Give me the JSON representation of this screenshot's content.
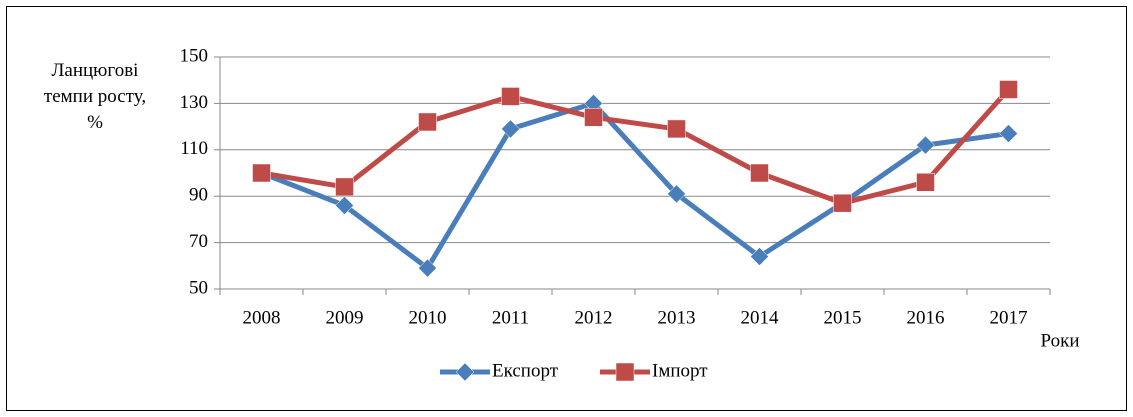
{
  "chart_data": {
    "type": "line",
    "y_label": "Ланцюгові темпи росту, %",
    "x_label": "Роки",
    "categories": [
      "2008",
      "2009",
      "2010",
      "2011",
      "2012",
      "2013",
      "2014",
      "2015",
      "2016",
      "2017"
    ],
    "series": [
      {
        "name": "Експорт",
        "color": "#4a7ebb",
        "marker": "diamond",
        "values": [
          100,
          86,
          59,
          119,
          130,
          91,
          64,
          87,
          112,
          117
        ]
      },
      {
        "name": "Імпорт",
        "color": "#be4b48",
        "marker": "square",
        "values": [
          100,
          94,
          122,
          133,
          124,
          119,
          100,
          87,
          96,
          136
        ]
      }
    ],
    "ylim": [
      50,
      150
    ],
    "yticks": [
      50,
      70,
      90,
      110,
      130,
      150
    ],
    "grid": true,
    "legend": "bottom"
  }
}
